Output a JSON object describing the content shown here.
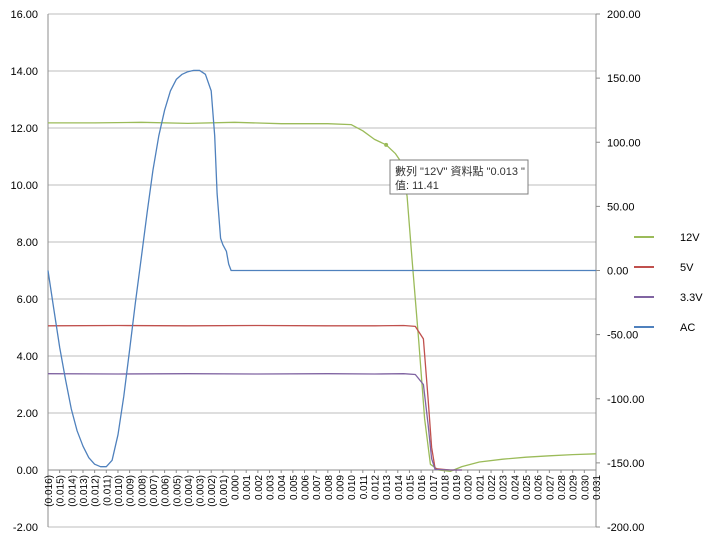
{
  "chart_data": {
    "type": "line",
    "title": "",
    "xlabel": "",
    "ylabel": "",
    "y_left": {
      "range": [
        -2,
        16
      ],
      "step": 2,
      "ticks": [
        "-2.00",
        "0.00",
        "2.00",
        "4.00",
        "6.00",
        "8.00",
        "10.00",
        "12.00",
        "14.00",
        "16.00"
      ]
    },
    "y_right": {
      "range": [
        -200,
        200
      ],
      "step": 50,
      "ticks": [
        "-200.00",
        "-150.00",
        "-100.00",
        "-50.00",
        "0.00",
        "50.00",
        "100.00",
        "150.00",
        "200.00"
      ]
    },
    "x_categories": [
      "(0.016)",
      "(0.015)",
      "(0.014)",
      "(0.013)",
      "(0.012)",
      "(0.011)",
      "(0.010)",
      "(0.009)",
      "(0.008)",
      "(0.007)",
      "(0.006)",
      "(0.005)",
      "(0.004)",
      "(0.003)",
      "(0.002)",
      "(0.001)",
      "0.000",
      "0.001",
      "0.002",
      "0.003",
      "0.004",
      "0.005",
      "0.006",
      "0.007",
      "0.008",
      "0.009",
      "0.010",
      "0.011",
      "0.012",
      "0.013",
      "0.014",
      "0.015",
      "0.016",
      "0.017",
      "0.018",
      "0.019",
      "0.020",
      "0.021",
      "0.022",
      "0.023",
      "0.024",
      "0.025",
      "0.026",
      "0.027",
      "0.028",
      "0.029",
      "0.030",
      "0.031"
    ],
    "x_range": [
      -0.016,
      0.031
    ],
    "grid": true,
    "legend_position": "right",
    "series": [
      {
        "name": "12V",
        "axis": "left",
        "color": "#9bbb59",
        "points": [
          [
            -0.016,
            12.18
          ],
          [
            -0.012,
            12.18
          ],
          [
            -0.008,
            12.2
          ],
          [
            -0.004,
            12.16
          ],
          [
            0.0,
            12.2
          ],
          [
            0.004,
            12.15
          ],
          [
            0.008,
            12.15
          ],
          [
            0.01,
            12.12
          ],
          [
            0.011,
            11.9
          ],
          [
            0.012,
            11.6
          ],
          [
            0.013,
            11.41
          ],
          [
            0.0138,
            11.1
          ],
          [
            0.0143,
            10.8
          ],
          [
            0.0148,
            9.6
          ],
          [
            0.0152,
            7.5
          ],
          [
            0.0158,
            4.5
          ],
          [
            0.0163,
            1.8
          ],
          [
            0.0168,
            0.2
          ],
          [
            0.0175,
            0.0
          ],
          [
            0.0185,
            -0.05
          ],
          [
            0.0195,
            0.12
          ],
          [
            0.021,
            0.28
          ],
          [
            0.023,
            0.38
          ],
          [
            0.025,
            0.45
          ],
          [
            0.027,
            0.5
          ],
          [
            0.029,
            0.54
          ],
          [
            0.031,
            0.57
          ]
        ]
      },
      {
        "name": "5V",
        "axis": "left",
        "color": "#c0504d",
        "points": [
          [
            -0.016,
            5.06
          ],
          [
            -0.01,
            5.07
          ],
          [
            -0.004,
            5.06
          ],
          [
            0.002,
            5.07
          ],
          [
            0.008,
            5.06
          ],
          [
            0.012,
            5.06
          ],
          [
            0.0145,
            5.07
          ],
          [
            0.0155,
            5.04
          ],
          [
            0.0162,
            4.6
          ],
          [
            0.0166,
            2.5
          ],
          [
            0.0169,
            0.8
          ],
          [
            0.0172,
            0.05
          ],
          [
            0.0185,
            0.0
          ],
          [
            0.0195,
            0.0
          ]
        ]
      },
      {
        "name": "3.3V",
        "axis": "left",
        "color": "#8064a2",
        "points": [
          [
            -0.016,
            3.38
          ],
          [
            -0.01,
            3.37
          ],
          [
            -0.004,
            3.38
          ],
          [
            0.002,
            3.37
          ],
          [
            0.008,
            3.38
          ],
          [
            0.012,
            3.37
          ],
          [
            0.0145,
            3.38
          ],
          [
            0.0155,
            3.35
          ],
          [
            0.0162,
            3.0
          ],
          [
            0.0166,
            1.6
          ],
          [
            0.0169,
            0.4
          ],
          [
            0.0172,
            0.02
          ],
          [
            0.0185,
            0.0
          ],
          [
            0.0195,
            0.0
          ]
        ]
      },
      {
        "name": "AC",
        "axis": "right",
        "color": "#4f81bd",
        "points": [
          [
            -0.016,
            0.0
          ],
          [
            -0.0155,
            -30
          ],
          [
            -0.015,
            -60
          ],
          [
            -0.0145,
            -85
          ],
          [
            -0.014,
            -108
          ],
          [
            -0.0135,
            -125
          ],
          [
            -0.013,
            -137
          ],
          [
            -0.0125,
            -146
          ],
          [
            -0.012,
            -151
          ],
          [
            -0.0115,
            -153
          ],
          [
            -0.011,
            -153
          ],
          [
            -0.0105,
            -148
          ],
          [
            -0.01,
            -128
          ],
          [
            -0.0095,
            -98
          ],
          [
            -0.009,
            -62
          ],
          [
            -0.0085,
            -25
          ],
          [
            -0.008,
            10
          ],
          [
            -0.0075,
            45
          ],
          [
            -0.007,
            78
          ],
          [
            -0.0065,
            105
          ],
          [
            -0.006,
            125
          ],
          [
            -0.0055,
            140
          ],
          [
            -0.005,
            149
          ],
          [
            -0.0045,
            153
          ],
          [
            -0.004,
            155
          ],
          [
            -0.0035,
            156
          ],
          [
            -0.003,
            156
          ],
          [
            -0.0025,
            153
          ],
          [
            -0.002,
            140
          ],
          [
            -0.0017,
            105
          ],
          [
            -0.0015,
            60
          ],
          [
            -0.0012,
            25
          ],
          [
            -0.001,
            20
          ],
          [
            -0.0007,
            15
          ],
          [
            -0.0005,
            5
          ],
          [
            -0.0003,
            0.0
          ],
          [
            0.005,
            0.0
          ],
          [
            0.01,
            0.0
          ],
          [
            0.015,
            0.0
          ],
          [
            0.02,
            0.0
          ],
          [
            0.025,
            0.0
          ],
          [
            0.031,
            0.0
          ]
        ]
      }
    ],
    "tooltip": {
      "line1": "數列 \"12V\" 資料點 \"0.013 \"",
      "line2": "值: 11.41"
    }
  }
}
